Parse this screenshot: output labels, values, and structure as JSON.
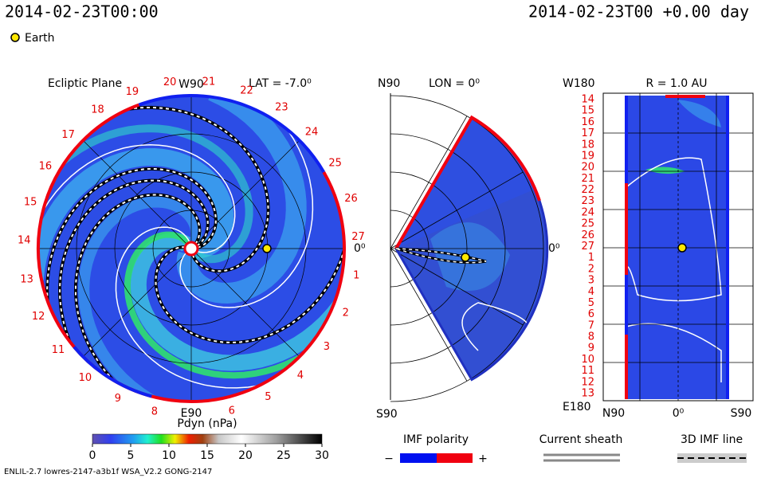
{
  "header": {
    "time": "2014-02-23T00:00",
    "elapsed": "2014-02-23T00 +0.00 day",
    "legend_label": "Earth"
  },
  "ecliptic": {
    "title": "Ecliptic Plane",
    "lat": "LAT = -7.0⁰",
    "top": "W90",
    "bottom": "E90",
    "right": "0⁰",
    "day_labels": [
      "27",
      "1",
      "2",
      "3",
      "4",
      "5",
      "6",
      null,
      "8",
      "9",
      "10",
      "11",
      "12",
      "13",
      "14",
      "15",
      "16",
      "17",
      "18",
      "19",
      "20",
      "21",
      "22",
      "23",
      "24",
      "25",
      "26"
    ]
  },
  "meridional": {
    "top": "N90",
    "lon": "LON = 0⁰",
    "bottom": "S90",
    "right": "0⁰"
  },
  "radial": {
    "top": "W180",
    "title": "R = 1.0 AU",
    "bottom": "E180",
    "row_labels": [
      "14",
      "15",
      "16",
      "17",
      "18",
      "19",
      "20",
      "21",
      "22",
      "23",
      "24",
      "25",
      "26",
      "27",
      "1",
      "2",
      "3",
      "4",
      "5",
      "6",
      "7",
      "8",
      "9",
      "10",
      "11",
      "12",
      "13"
    ],
    "x_labels": [
      "N90",
      "0⁰",
      "S90"
    ]
  },
  "colorbar": {
    "label": "Pdyn (nPa)",
    "range": [
      0,
      30
    ],
    "ticks": [
      0,
      5,
      10,
      15,
      20,
      25,
      30
    ]
  },
  "legends": {
    "imf_polarity": "IMF polarity",
    "minus": "−",
    "plus": "+",
    "current_sheath": "Current sheath",
    "imf_line": "3D IMF line"
  },
  "footer": "ENLIL-2.7 lowres-2147-a3b1f WSA_V2.2 GONG-2147"
}
